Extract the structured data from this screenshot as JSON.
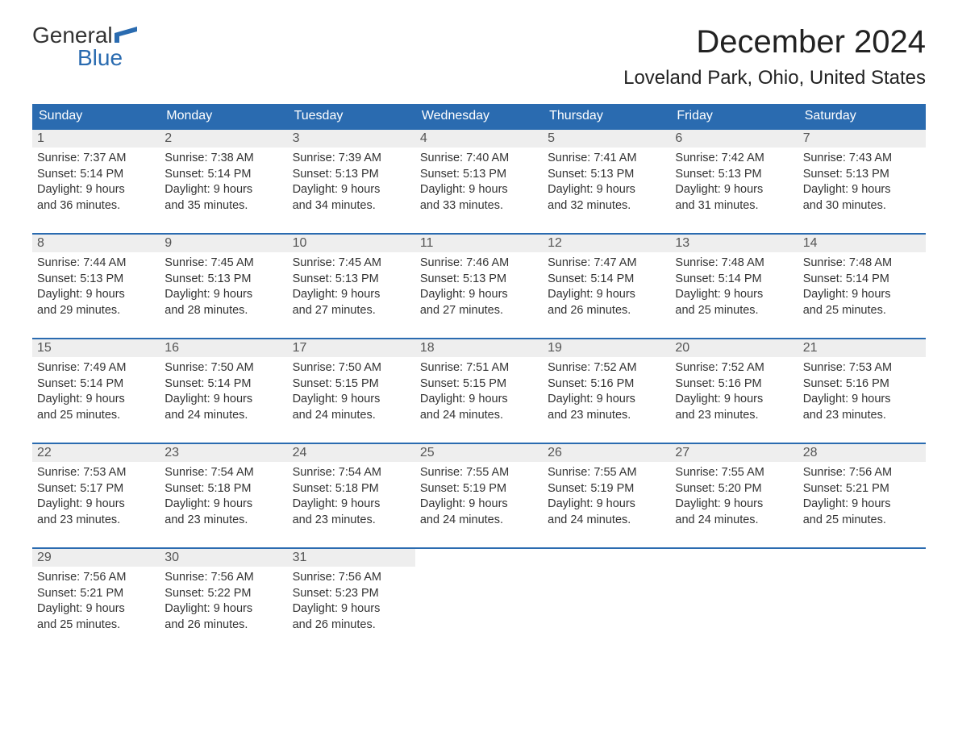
{
  "logo": {
    "line1": "General",
    "line2": "Blue",
    "flag_color": "#2a6bb0"
  },
  "title": "December 2024",
  "location": "Loveland Park, Ohio, United States",
  "colors": {
    "header_bg": "#2a6bb0",
    "header_text": "#ffffff",
    "daynum_bg": "#eeeeee",
    "daynum_text": "#555555",
    "body_text": "#333333",
    "week_border": "#2a6bb0",
    "page_bg": "#ffffff"
  },
  "typography": {
    "title_fontsize": 40,
    "location_fontsize": 24,
    "dow_fontsize": 16,
    "daynum_fontsize": 16,
    "body_fontsize": 14.5
  },
  "days_of_week": [
    "Sunday",
    "Monday",
    "Tuesday",
    "Wednesday",
    "Thursday",
    "Friday",
    "Saturday"
  ],
  "weeks": [
    [
      {
        "n": "1",
        "sunrise": "Sunrise: 7:37 AM",
        "sunset": "Sunset: 5:14 PM",
        "dl1": "Daylight: 9 hours",
        "dl2": "and 36 minutes."
      },
      {
        "n": "2",
        "sunrise": "Sunrise: 7:38 AM",
        "sunset": "Sunset: 5:14 PM",
        "dl1": "Daylight: 9 hours",
        "dl2": "and 35 minutes."
      },
      {
        "n": "3",
        "sunrise": "Sunrise: 7:39 AM",
        "sunset": "Sunset: 5:13 PM",
        "dl1": "Daylight: 9 hours",
        "dl2": "and 34 minutes."
      },
      {
        "n": "4",
        "sunrise": "Sunrise: 7:40 AM",
        "sunset": "Sunset: 5:13 PM",
        "dl1": "Daylight: 9 hours",
        "dl2": "and 33 minutes."
      },
      {
        "n": "5",
        "sunrise": "Sunrise: 7:41 AM",
        "sunset": "Sunset: 5:13 PM",
        "dl1": "Daylight: 9 hours",
        "dl2": "and 32 minutes."
      },
      {
        "n": "6",
        "sunrise": "Sunrise: 7:42 AM",
        "sunset": "Sunset: 5:13 PM",
        "dl1": "Daylight: 9 hours",
        "dl2": "and 31 minutes."
      },
      {
        "n": "7",
        "sunrise": "Sunrise: 7:43 AM",
        "sunset": "Sunset: 5:13 PM",
        "dl1": "Daylight: 9 hours",
        "dl2": "and 30 minutes."
      }
    ],
    [
      {
        "n": "8",
        "sunrise": "Sunrise: 7:44 AM",
        "sunset": "Sunset: 5:13 PM",
        "dl1": "Daylight: 9 hours",
        "dl2": "and 29 minutes."
      },
      {
        "n": "9",
        "sunrise": "Sunrise: 7:45 AM",
        "sunset": "Sunset: 5:13 PM",
        "dl1": "Daylight: 9 hours",
        "dl2": "and 28 minutes."
      },
      {
        "n": "10",
        "sunrise": "Sunrise: 7:45 AM",
        "sunset": "Sunset: 5:13 PM",
        "dl1": "Daylight: 9 hours",
        "dl2": "and 27 minutes."
      },
      {
        "n": "11",
        "sunrise": "Sunrise: 7:46 AM",
        "sunset": "Sunset: 5:13 PM",
        "dl1": "Daylight: 9 hours",
        "dl2": "and 27 minutes."
      },
      {
        "n": "12",
        "sunrise": "Sunrise: 7:47 AM",
        "sunset": "Sunset: 5:14 PM",
        "dl1": "Daylight: 9 hours",
        "dl2": "and 26 minutes."
      },
      {
        "n": "13",
        "sunrise": "Sunrise: 7:48 AM",
        "sunset": "Sunset: 5:14 PM",
        "dl1": "Daylight: 9 hours",
        "dl2": "and 25 minutes."
      },
      {
        "n": "14",
        "sunrise": "Sunrise: 7:48 AM",
        "sunset": "Sunset: 5:14 PM",
        "dl1": "Daylight: 9 hours",
        "dl2": "and 25 minutes."
      }
    ],
    [
      {
        "n": "15",
        "sunrise": "Sunrise: 7:49 AM",
        "sunset": "Sunset: 5:14 PM",
        "dl1": "Daylight: 9 hours",
        "dl2": "and 25 minutes."
      },
      {
        "n": "16",
        "sunrise": "Sunrise: 7:50 AM",
        "sunset": "Sunset: 5:14 PM",
        "dl1": "Daylight: 9 hours",
        "dl2": "and 24 minutes."
      },
      {
        "n": "17",
        "sunrise": "Sunrise: 7:50 AM",
        "sunset": "Sunset: 5:15 PM",
        "dl1": "Daylight: 9 hours",
        "dl2": "and 24 minutes."
      },
      {
        "n": "18",
        "sunrise": "Sunrise: 7:51 AM",
        "sunset": "Sunset: 5:15 PM",
        "dl1": "Daylight: 9 hours",
        "dl2": "and 24 minutes."
      },
      {
        "n": "19",
        "sunrise": "Sunrise: 7:52 AM",
        "sunset": "Sunset: 5:16 PM",
        "dl1": "Daylight: 9 hours",
        "dl2": "and 23 minutes."
      },
      {
        "n": "20",
        "sunrise": "Sunrise: 7:52 AM",
        "sunset": "Sunset: 5:16 PM",
        "dl1": "Daylight: 9 hours",
        "dl2": "and 23 minutes."
      },
      {
        "n": "21",
        "sunrise": "Sunrise: 7:53 AM",
        "sunset": "Sunset: 5:16 PM",
        "dl1": "Daylight: 9 hours",
        "dl2": "and 23 minutes."
      }
    ],
    [
      {
        "n": "22",
        "sunrise": "Sunrise: 7:53 AM",
        "sunset": "Sunset: 5:17 PM",
        "dl1": "Daylight: 9 hours",
        "dl2": "and 23 minutes."
      },
      {
        "n": "23",
        "sunrise": "Sunrise: 7:54 AM",
        "sunset": "Sunset: 5:18 PM",
        "dl1": "Daylight: 9 hours",
        "dl2": "and 23 minutes."
      },
      {
        "n": "24",
        "sunrise": "Sunrise: 7:54 AM",
        "sunset": "Sunset: 5:18 PM",
        "dl1": "Daylight: 9 hours",
        "dl2": "and 23 minutes."
      },
      {
        "n": "25",
        "sunrise": "Sunrise: 7:55 AM",
        "sunset": "Sunset: 5:19 PM",
        "dl1": "Daylight: 9 hours",
        "dl2": "and 24 minutes."
      },
      {
        "n": "26",
        "sunrise": "Sunrise: 7:55 AM",
        "sunset": "Sunset: 5:19 PM",
        "dl1": "Daylight: 9 hours",
        "dl2": "and 24 minutes."
      },
      {
        "n": "27",
        "sunrise": "Sunrise: 7:55 AM",
        "sunset": "Sunset: 5:20 PM",
        "dl1": "Daylight: 9 hours",
        "dl2": "and 24 minutes."
      },
      {
        "n": "28",
        "sunrise": "Sunrise: 7:56 AM",
        "sunset": "Sunset: 5:21 PM",
        "dl1": "Daylight: 9 hours",
        "dl2": "and 25 minutes."
      }
    ],
    [
      {
        "n": "29",
        "sunrise": "Sunrise: 7:56 AM",
        "sunset": "Sunset: 5:21 PM",
        "dl1": "Daylight: 9 hours",
        "dl2": "and 25 minutes."
      },
      {
        "n": "30",
        "sunrise": "Sunrise: 7:56 AM",
        "sunset": "Sunset: 5:22 PM",
        "dl1": "Daylight: 9 hours",
        "dl2": "and 26 minutes."
      },
      {
        "n": "31",
        "sunrise": "Sunrise: 7:56 AM",
        "sunset": "Sunset: 5:23 PM",
        "dl1": "Daylight: 9 hours",
        "dl2": "and 26 minutes."
      },
      {
        "empty": true
      },
      {
        "empty": true
      },
      {
        "empty": true
      },
      {
        "empty": true
      }
    ]
  ]
}
